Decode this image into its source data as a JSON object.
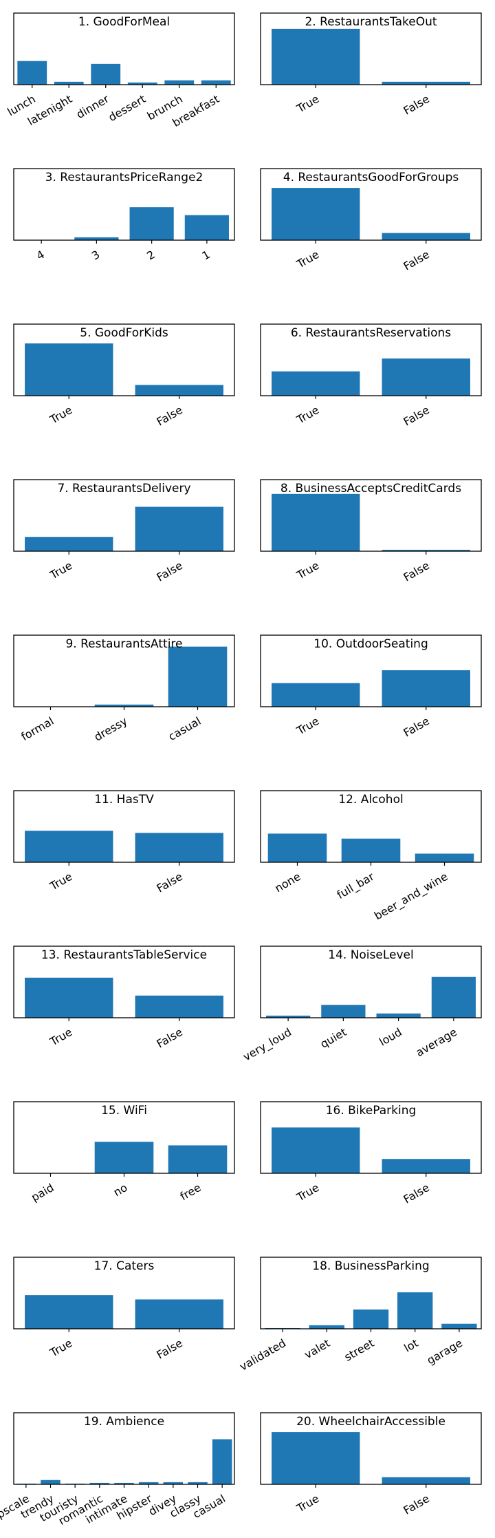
{
  "colors": {
    "bar": "#1f77b4",
    "axes": "#000000",
    "background": "#ffffff"
  },
  "chart_data": [
    {
      "type": "bar",
      "title": "1. GoodForMeal",
      "categories": [
        "lunch",
        "latenight",
        "dinner",
        "dessert",
        "brunch",
        "breakfast"
      ],
      "values": [
        0.33,
        0.04,
        0.29,
        0.03,
        0.06,
        0.06
      ],
      "ylim": [
        0,
        1
      ],
      "grid": false,
      "legend": "none"
    },
    {
      "type": "bar",
      "title": "2. RestaurantsTakeOut",
      "categories": [
        "True",
        "False"
      ],
      "values": [
        0.78,
        0.04
      ],
      "ylim": [
        0,
        1
      ],
      "grid": false,
      "legend": "none"
    },
    {
      "type": "bar",
      "title": "3. RestaurantsPriceRange2",
      "categories": [
        "4",
        "3",
        "2",
        "1"
      ],
      "values": [
        0.005,
        0.04,
        0.46,
        0.35
      ],
      "ylim": [
        0,
        1
      ],
      "grid": false,
      "legend": "none"
    },
    {
      "type": "bar",
      "title": "4. RestaurantsGoodForGroups",
      "categories": [
        "True",
        "False"
      ],
      "values": [
        0.73,
        0.1
      ],
      "ylim": [
        0,
        1
      ],
      "grid": false,
      "legend": "none"
    },
    {
      "type": "bar",
      "title": "5. GoodForKids",
      "categories": [
        "True",
        "False"
      ],
      "values": [
        0.73,
        0.15
      ],
      "ylim": [
        0,
        1
      ],
      "grid": false,
      "legend": "none"
    },
    {
      "type": "bar",
      "title": "6. RestaurantsReservations",
      "categories": [
        "True",
        "False"
      ],
      "values": [
        0.34,
        0.52
      ],
      "ylim": [
        0,
        1
      ],
      "grid": false,
      "legend": "none"
    },
    {
      "type": "bar",
      "title": "7. RestaurantsDelivery",
      "categories": [
        "True",
        "False"
      ],
      "values": [
        0.2,
        0.62
      ],
      "ylim": [
        0,
        1
      ],
      "grid": false,
      "legend": "none"
    },
    {
      "type": "bar",
      "title": "8. BusinessAcceptsCreditCards",
      "categories": [
        "True",
        "False"
      ],
      "values": [
        0.8,
        0.02
      ],
      "ylim": [
        0,
        1
      ],
      "grid": false,
      "legend": "none"
    },
    {
      "type": "bar",
      "title": "9. RestaurantsAttire",
      "categories": [
        "formal",
        "dressy",
        "casual"
      ],
      "values": [
        0.003,
        0.03,
        0.84
      ],
      "ylim": [
        0,
        1
      ],
      "grid": false,
      "legend": "none"
    },
    {
      "type": "bar",
      "title": "10. OutdoorSeating",
      "categories": [
        "True",
        "False"
      ],
      "values": [
        0.33,
        0.51
      ],
      "ylim": [
        0,
        1
      ],
      "grid": false,
      "legend": "none"
    },
    {
      "type": "bar",
      "title": "11. HasTV",
      "categories": [
        "True",
        "False"
      ],
      "values": [
        0.44,
        0.41
      ],
      "ylim": [
        0,
        1
      ],
      "grid": false,
      "legend": "none"
    },
    {
      "type": "bar",
      "title": "12. Alcohol",
      "categories": [
        "none",
        "full_bar",
        "beer_and_wine"
      ],
      "values": [
        0.4,
        0.33,
        0.12
      ],
      "ylim": [
        0,
        1
      ],
      "grid": false,
      "legend": "none"
    },
    {
      "type": "bar",
      "title": "13. RestaurantsTableService",
      "categories": [
        "True",
        "False"
      ],
      "values": [
        0.56,
        0.31
      ],
      "ylim": [
        0,
        1
      ],
      "grid": false,
      "legend": "none"
    },
    {
      "type": "bar",
      "title": "14. NoiseLevel",
      "categories": [
        "very_loud",
        "quiet",
        "loud",
        "average"
      ],
      "values": [
        0.03,
        0.18,
        0.06,
        0.57
      ],
      "ylim": [
        0,
        1
      ],
      "grid": false,
      "legend": "none"
    },
    {
      "type": "bar",
      "title": "15. WiFi",
      "categories": [
        "paid",
        "no",
        "free"
      ],
      "values": [
        0.005,
        0.44,
        0.39
      ],
      "ylim": [
        0,
        1
      ],
      "grid": false,
      "legend": "none"
    },
    {
      "type": "bar",
      "title": "16. BikeParking",
      "categories": [
        "True",
        "False"
      ],
      "values": [
        0.64,
        0.2
      ],
      "ylim": [
        0,
        1
      ],
      "grid": false,
      "legend": "none"
    },
    {
      "type": "bar",
      "title": "17. Caters",
      "categories": [
        "True",
        "False"
      ],
      "values": [
        0.47,
        0.41
      ],
      "ylim": [
        0,
        1
      ],
      "grid": false,
      "legend": "none"
    },
    {
      "type": "bar",
      "title": "18. BusinessParking",
      "categories": [
        "validated",
        "valet",
        "street",
        "lot",
        "garage"
      ],
      "values": [
        0.01,
        0.05,
        0.27,
        0.51,
        0.07
      ],
      "ylim": [
        0,
        1
      ],
      "grid": false,
      "legend": "none"
    },
    {
      "type": "bar",
      "title": "19. Ambience",
      "categories": [
        "upscale",
        "trendy",
        "touristy",
        "romantic",
        "intimate",
        "hipster",
        "divey",
        "classy",
        "casual"
      ],
      "values": [
        0.01,
        0.06,
        0.01,
        0.02,
        0.02,
        0.03,
        0.03,
        0.03,
        0.63
      ],
      "ylim": [
        0,
        1
      ],
      "grid": false,
      "legend": "none"
    },
    {
      "type": "bar",
      "title": "20. WheelchairAccessible",
      "categories": [
        "True",
        "False"
      ],
      "values": [
        0.73,
        0.1
      ],
      "ylim": [
        0,
        1
      ],
      "grid": false,
      "legend": "none"
    }
  ]
}
